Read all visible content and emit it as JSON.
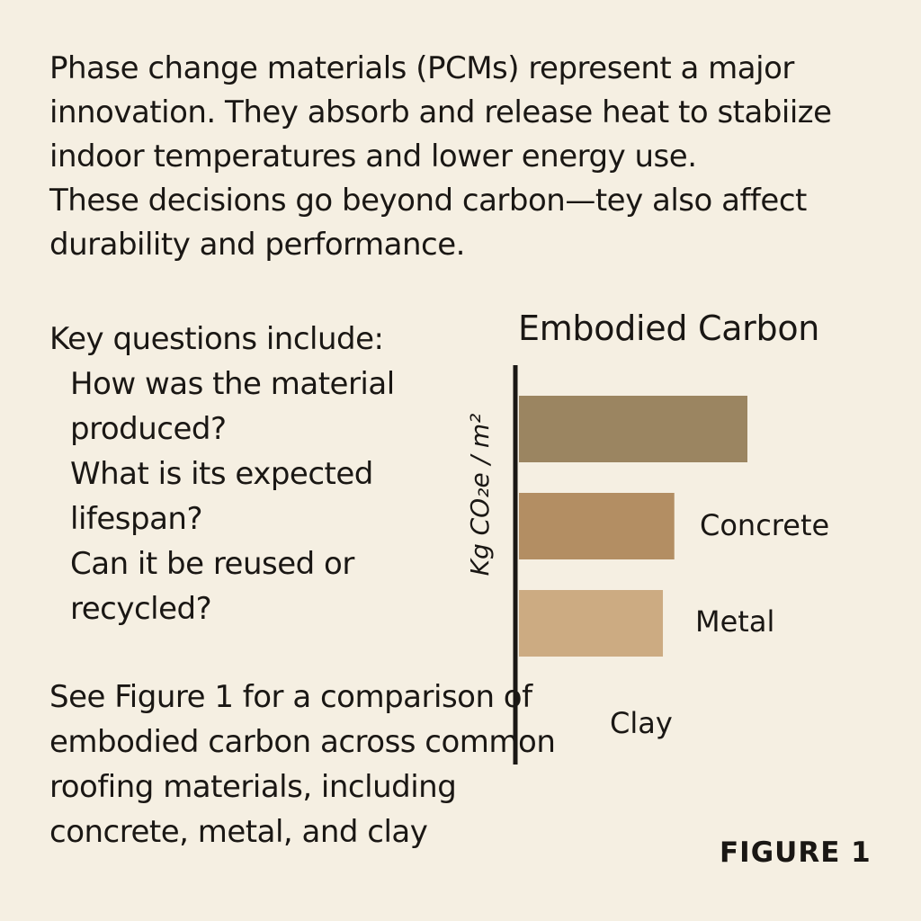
{
  "intro": {
    "paragraph1": "Phase change materials (PCMs) represent a major innovation. They absorb and release heat to stabiize indoor temperatures and lower energy use.",
    "paragraph2": "These decisions go beyond carbon—tey also affect durability and performance."
  },
  "questions": {
    "heading": "Key questions include:",
    "items": [
      "How was the material produced?",
      "What is its expected lifespan?",
      "Can it be reused or recycled?"
    ]
  },
  "see_figure": "See Figure 1 for a comparison of embodied carbon across common roofing materials, including concrete, metal, and clay",
  "figure_label": "FIGURE 1",
  "chart_data": {
    "type": "bar",
    "orientation": "horizontal",
    "title": "Embodied Carbon",
    "ylabel": "Kg CO₂e / m²",
    "categories": [
      "",
      "Concrete",
      "Metal",
      "Clay"
    ],
    "values": [
      100,
      68,
      63,
      0
    ],
    "bar_colors": [
      "#9b8561",
      "#b38e63",
      "#ccab82",
      "#ccab82"
    ],
    "axis_color": "#1a1714",
    "background": "#f5efe2"
  }
}
